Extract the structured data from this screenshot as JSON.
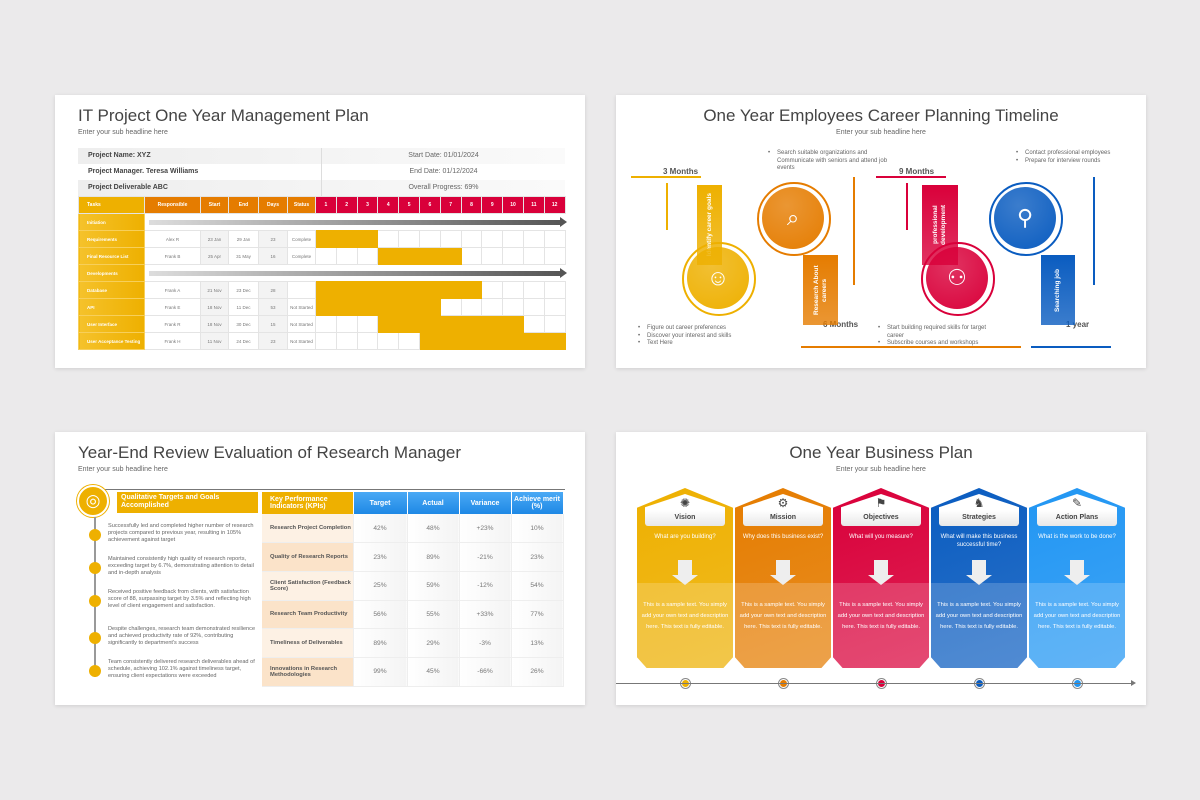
{
  "slide1": {
    "title": "IT Project One Year Management Plan",
    "subtitle": "Enter your sub headline here",
    "info": [
      {
        "left": "Project Name: XYZ",
        "right": "Start Date: 01/01/2024"
      },
      {
        "left": "Project Manager. Teresa Williams",
        "right": "End Date: 01/12/2024"
      },
      {
        "left": "Project Deliverable ABC",
        "right": "Overall Progress: 69%"
      }
    ],
    "headers": [
      "Tasks",
      "Responsible",
      "Start",
      "End",
      "Days",
      "Status"
    ],
    "months": [
      "1",
      "2",
      "3",
      "4",
      "5",
      "6",
      "7",
      "8",
      "9",
      "10",
      "11",
      "12"
    ],
    "rows": [
      {
        "task": "Initiation",
        "phase": true
      },
      {
        "task": "Requirements",
        "responsible": "Alex R",
        "start": "23 Jan",
        "end": "29 Jan",
        "days": "23",
        "status": "Complete",
        "bar": [
          1,
          3
        ]
      },
      {
        "task": "Final Resource List",
        "responsible": "Frank B",
        "start": "25 Apr",
        "end": "31 May",
        "days": "16",
        "status": "Complete",
        "bar": [
          4,
          7
        ]
      },
      {
        "task": "Developments",
        "phase": true
      },
      {
        "task": "Database",
        "responsible": "Frank A",
        "start": "21 Nov",
        "end": "23 Dec",
        "days": "28",
        "status": "",
        "bar": [
          1,
          8
        ]
      },
      {
        "task": "API",
        "responsible": "Frank E",
        "start": "18 Nov",
        "end": "11 Dec",
        "days": "53",
        "status": "Not Started",
        "bar": [
          1,
          6
        ]
      },
      {
        "task": "User Interface",
        "responsible": "Frank R",
        "start": "18 Nov",
        "end": "30 Dec",
        "days": "15",
        "status": "Not Started",
        "bar": [
          4,
          10
        ]
      },
      {
        "task": "User Acceptance Testing",
        "responsible": "Frank H",
        "start": "11 Nov",
        "end": "24 Dec",
        "days": "23",
        "status": "Not Started",
        "bar": [
          6,
          12
        ]
      }
    ],
    "colors": {
      "task": "#eeb000",
      "header": "#e57c00",
      "months": "#d9003a"
    }
  },
  "slide2": {
    "title": "One Year Employees Career Planning Timeline",
    "subtitle": "Enter your sub headline here",
    "stages": [
      {
        "period": "3 Months",
        "label": "Identify career goals",
        "icon": "career-goals-icon",
        "color": "#eeb000",
        "notes": [
          "Figure out career preferences",
          "Discover your interest and skills",
          "Text Here"
        ]
      },
      {
        "period": "6 Months",
        "label": "Research About careers",
        "icon": "briefcase-search-icon",
        "color": "#e57c00",
        "notes": [
          "Search suitable organizations and Communicate with seniors and attend job events"
        ]
      },
      {
        "period": "9 Months",
        "label": "professional development",
        "icon": "growth-laptop-icon",
        "color": "#d9003a",
        "notes": [
          "Start building required skills for target career",
          "Subscribe courses and workshops"
        ]
      },
      {
        "period": "1 year",
        "label": "Searching job",
        "icon": "job-search-icon",
        "color": "#0a5cc0",
        "notes": [
          "Contact professional employees",
          "Prepare for interview rounds"
        ]
      }
    ]
  },
  "slide3": {
    "title": "Year-End Review Evaluation of Research Manager",
    "subtitle": "Enter your sub headline here",
    "qual_header": "Qualitative Targets and Goals Accomplished",
    "qual_items": [
      "Successfully led and completed higher number of research projects compared to previous year, resulting in 105% achievement against target",
      "Maintained consistently high quality of research reports, exceeding target by 6.7%, demonstrating attention to detail and in-depth analysis",
      "Received positive feedback from clients, with satisfaction score of 88, surpassing target by 3.5% and reflecting high level of client engagement and satisfaction.",
      "Despite challenges, research team demonstrated resilience and achieved productivity rate of 92%, contributing significantly to department's success",
      "Team consistently delivered research deliverables ahead of schedule, achieving 102.1% against timeliness target, ensuring client expectations were exceeded"
    ],
    "kpi_headers": [
      "Key Performance Indicators (KPIs)",
      "Target",
      "Actual",
      "Variance",
      "Achieve merit (%)"
    ],
    "kpi_rows": [
      [
        "Research Project Completion",
        "42%",
        "48%",
        "+23%",
        "10%"
      ],
      [
        "Quality of Research Reports",
        "23%",
        "89%",
        "-21%",
        "23%"
      ],
      [
        "Client Satisfaction (Feedback Score)",
        "25%",
        "59%",
        "-12%",
        "54%"
      ],
      [
        "Research Team Productivity",
        "56%",
        "55%",
        "+33%",
        "77%"
      ],
      [
        "Timeliness of Deliverables",
        "89%",
        "29%",
        "-3%",
        "13%"
      ],
      [
        "Innovations in Research Methodologies",
        "99%",
        "45%",
        "-66%",
        "26%"
      ]
    ]
  },
  "slide4": {
    "title": "One Year Business Plan",
    "subtitle": "Enter your sub headline here",
    "cards": [
      {
        "label": "Vision",
        "question": "What are you building?",
        "text": "This is a sample text. You simply add your own text and description here. This text is fully editable.",
        "color": "#eeb000",
        "icon": "lightbulb-icon"
      },
      {
        "label": "Mission",
        "question": "Why does this business exist?",
        "text": "This is a sample text. You simply add your own text and description here. This text is fully editable.",
        "color": "#e57c00",
        "icon": "gear-icon"
      },
      {
        "label": "Objectives",
        "question": "What will you measure?",
        "text": "This is a sample text. You simply add your own text and description here. This text is fully editable.",
        "color": "#d9003a",
        "icon": "flag-steps-icon"
      },
      {
        "label": "Strategies",
        "question": "What will make this business successful time?",
        "text": "This is a sample text. You simply add your own text and description here. This text is fully editable.",
        "color": "#0a5cc0",
        "icon": "chess-knight-icon"
      },
      {
        "label": "Action Plans",
        "question": "What is the work to be done?",
        "text": "This is a sample text. You simply add your own text and description here. This text is fully editable.",
        "color": "#2196f3",
        "icon": "tools-icon"
      }
    ]
  }
}
